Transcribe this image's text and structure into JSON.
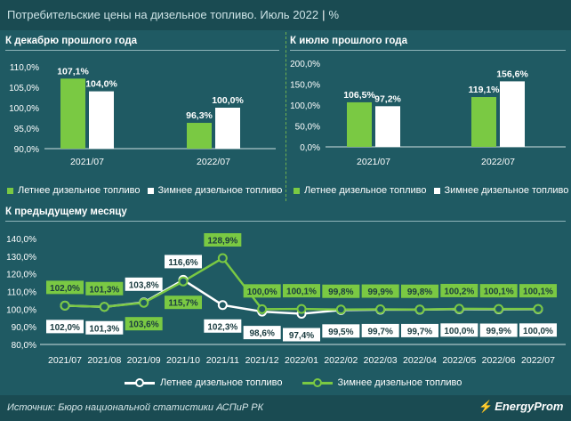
{
  "header": {
    "title": "Потребительские цены на дизельное топливо. Июль 2022",
    "unit": "%"
  },
  "colors": {
    "summer": "#7ac943",
    "winter": "#ffffff",
    "background": "#1f5a63",
    "header": "#1a4b52"
  },
  "chart_data": [
    {
      "type": "bar",
      "title": "К декабрю прошлого года",
      "categories": [
        "2021/07",
        "2022/07"
      ],
      "series": [
        {
          "name": "Летнее дизельное топливо",
          "values": [
            107.1,
            96.3
          ],
          "labels": [
            "107,1%",
            "96,3%"
          ]
        },
        {
          "name": "Зимнее дизельное топливо",
          "values": [
            104.0,
            100.0
          ],
          "labels": [
            "104,0%",
            "100,0%"
          ]
        }
      ],
      "ylim": [
        90,
        110
      ],
      "yticks": [
        "90,0%",
        "95,0%",
        "100,0%",
        "105,0%",
        "110,0%"
      ]
    },
    {
      "type": "bar",
      "title": "К июлю прошлого года",
      "categories": [
        "2021/07",
        "2022/07"
      ],
      "series": [
        {
          "name": "Летнее дизельное топливо",
          "values": [
            106.5,
            119.1
          ],
          "labels": [
            "106,5%",
            "119,1%"
          ]
        },
        {
          "name": "Зимнее дизельное топливо",
          "values": [
            97.2,
            156.6
          ],
          "labels": [
            "97,2%",
            "156,6%"
          ]
        }
      ],
      "ylim": [
        0,
        200
      ],
      "yticks": [
        "0,0%",
        "50,0%",
        "100,0%",
        "150,0%",
        "200,0%"
      ]
    },
    {
      "type": "line",
      "title": "К предыдущему месяцу",
      "categories": [
        "2021/07",
        "2021/08",
        "2021/09",
        "2021/10",
        "2021/11",
        "2021/12",
        "2022/01",
        "2022/02",
        "2022/03",
        "2022/04",
        "2022/05",
        "2022/06",
        "2022/07"
      ],
      "series": [
        {
          "name": "Летнее дизельное топливо",
          "values": [
            102.0,
            101.3,
            103.8,
            116.6,
            102.3,
            98.6,
            97.4,
            99.5,
            99.7,
            99.7,
            100.0,
            99.9,
            100.0
          ],
          "labels": [
            "102,0%",
            "101,3%",
            "103,8%",
            "116,6%",
            "102,3%",
            "98,6%",
            "97,4%",
            "99,5%",
            "99,7%",
            "99,7%",
            "100,0%",
            "99,9%",
            "100,0%"
          ]
        },
        {
          "name": "Зимнее дизельное топливо",
          "values": [
            102.0,
            101.3,
            103.6,
            115.7,
            128.9,
            100.0,
            100.1,
            99.8,
            99.9,
            99.8,
            100.2,
            100.1,
            100.1
          ],
          "labels": [
            "102,0%",
            "101,3%",
            "103,6%",
            "115,7%",
            "128,9%",
            "100,0%",
            "100,1%",
            "99,8%",
            "99,9%",
            "99,8%",
            "100,2%",
            "100,1%",
            "100,1%"
          ]
        }
      ],
      "ylim": [
        80,
        140
      ],
      "yticks": [
        "80,0%",
        "90,0%",
        "100,0%",
        "110,0%",
        "120,0%",
        "130,0%",
        "140,0%"
      ]
    }
  ],
  "legend": {
    "summer": "Летнее дизельное топливо",
    "winter": "Зимнее дизельное топливо"
  },
  "footer": {
    "source": "Источник: Бюро национальной статистики АСПиР РК",
    "logo": "EnergyProm"
  }
}
